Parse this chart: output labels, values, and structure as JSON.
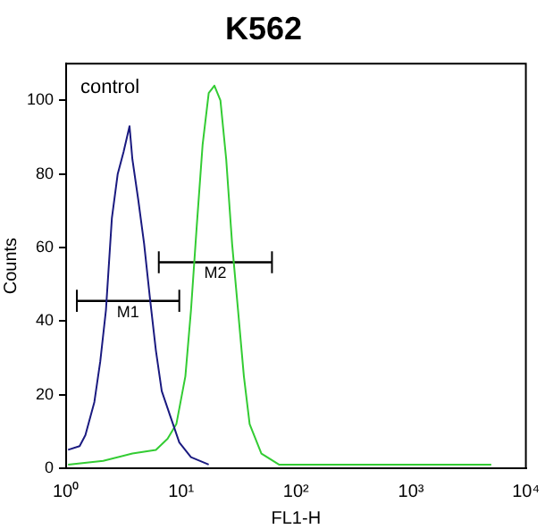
{
  "chart_data": {
    "type": "line",
    "title": "K562",
    "xlabel": "FL1-H",
    "ylabel": "Counts",
    "annotations": [
      "control"
    ],
    "log": "x",
    "xlim": [
      1,
      10000
    ],
    "xticks": [
      {
        "value": 1,
        "label": "10⁰"
      },
      {
        "value": 10,
        "label": "10¹"
      },
      {
        "value": 100,
        "label": "10²"
      },
      {
        "value": 1000,
        "label": "10³"
      },
      {
        "value": 10000,
        "label": "10⁴"
      }
    ],
    "ylim": [
      0,
      110
    ],
    "yticks": [
      0,
      20,
      40,
      60,
      80,
      100
    ],
    "grid": false,
    "legend": false,
    "marker": "none",
    "line_style": "solid",
    "series": [
      {
        "color": "#1a1a80",
        "x": [
          1.04,
          1.31,
          1.47,
          1.76,
          1.98,
          2.22,
          2.5,
          2.81,
          3.16,
          3.56,
          3.77,
          4.24,
          4.77,
          5.37,
          6.04,
          6.79,
          8.09,
          9.65,
          12.2,
          17.4
        ],
        "values": [
          5,
          6,
          9,
          18,
          29,
          43,
          68,
          80,
          86,
          93,
          84,
          73,
          61,
          46,
          32,
          21,
          14,
          7,
          3,
          1
        ]
      },
      {
        "color": "#33cc33",
        "x": [
          1.04,
          2.1,
          3.77,
          6.04,
          7.63,
          9.1,
          10.9,
          12.2,
          13.7,
          15.4,
          17.4,
          19.5,
          22,
          24.7,
          27.8,
          31.3,
          35.2,
          39.5,
          50,
          71.1,
          200,
          1000,
          5000
        ],
        "values": [
          1,
          2,
          4,
          5,
          8,
          12,
          25,
          43,
          66,
          88,
          102,
          104,
          100,
          84,
          61,
          43,
          25,
          12,
          4,
          1,
          1,
          1,
          1
        ]
      },
      {
        "name": "M1",
        "type": "line",
        "color": "#000000",
        "x": [
          1.24,
          9.65
        ],
        "values": [
          45.5,
          45.5
        ],
        "errors": [
          3,
          3
        ]
      },
      {
        "name": "M2",
        "type": "line",
        "color": "#000000",
        "x": [
          6.4,
          61.8
        ],
        "values": [
          56,
          56
        ],
        "errors": [
          3,
          3
        ]
      }
    ]
  }
}
